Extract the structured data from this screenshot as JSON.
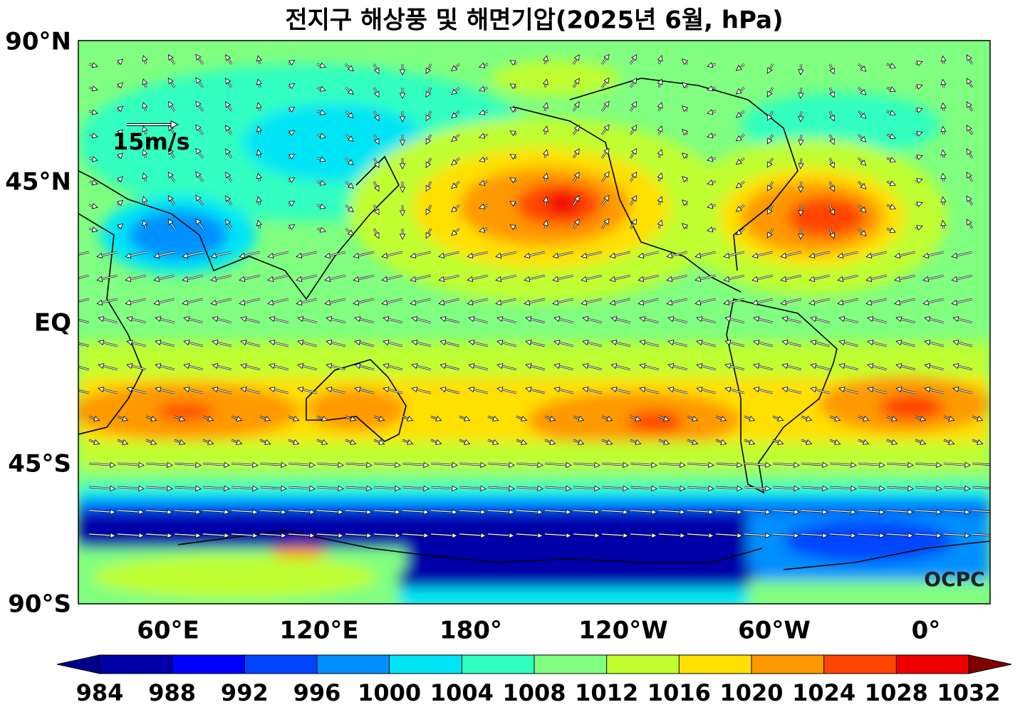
{
  "title": "전지구 해상풍 및 해면기압(2025년 6월, hPa)",
  "map": {
    "lat_labels": [
      "90°N",
      "45°N",
      "EQ",
      "45°S",
      "90°S"
    ],
    "lon_labels": [
      "60°E",
      "120°E",
      "180°",
      "120°W",
      "60°W",
      "0°"
    ],
    "reference_vector": "15m/s",
    "logo": "OCPC"
  },
  "colorbar": {
    "ticks": [
      984,
      988,
      992,
      996,
      1000,
      1004,
      1008,
      1012,
      1016,
      1020,
      1024,
      1028,
      1032
    ],
    "colors": [
      "#0000a8",
      "#0000ff",
      "#0044ff",
      "#0090ff",
      "#00e5f5",
      "#30ffc0",
      "#80ff80",
      "#c0ff30",
      "#ffe000",
      "#ff9900",
      "#ff4400",
      "#ee0000"
    ],
    "under_color": "#00008b",
    "over_color": "#800000"
  }
}
